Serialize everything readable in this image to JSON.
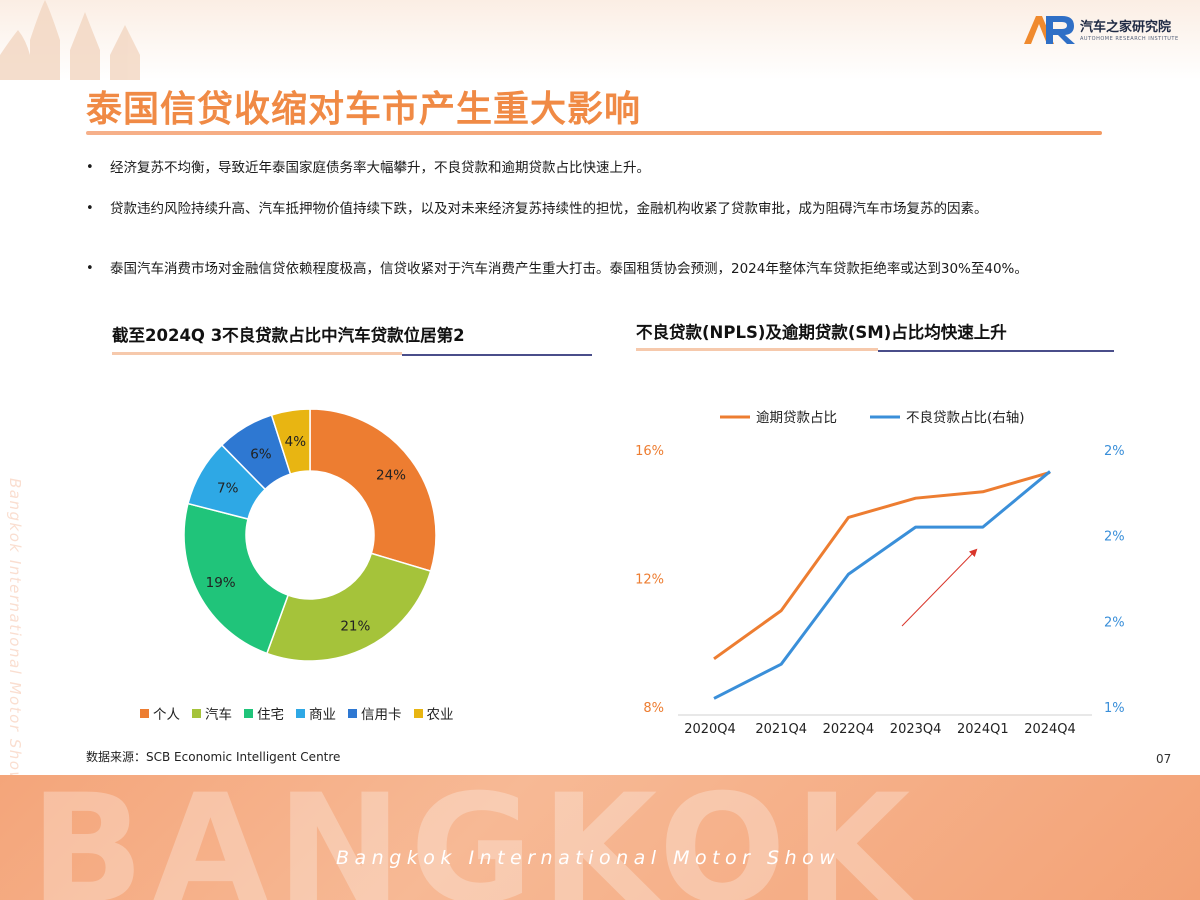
{
  "header": {
    "logo_name": "汽车之家研究院",
    "logo_sub": "AUTOHOME RESEARCH INSTITUTE",
    "logo_mark": "AR"
  },
  "title": "泰国信贷收缩对车市产生重大影响",
  "bullets": [
    {
      "dot": "•",
      "text": "经济复苏不均衡，导致近年泰国家庭债务率大幅攀升，不良贷款和逾期贷款占比快速上升。"
    },
    {
      "dot": "•",
      "text": "贷款违约风险持续升高、汽车抵押物价值持续下跌，以及对未来经济复苏持续性的担忧，金融机构收紧了贷款审批，成为阻碍汽车市场复苏的因素。"
    },
    {
      "dot": "•",
      "text": "泰国汽车消费市场对金融信贷依赖程度极高，信贷收紧对于汽车消费产生重大打击。泰国租赁协会预测，2024年整体汽车贷款拒绝率或达到30%至40%。"
    }
  ],
  "left_section_title": "截至2024Q 3不良贷款占比中汽车贷款位居第2",
  "right_section_title": "不良贷款(NPLS)及逾期贷款(SM)占比均快速上升",
  "data_source": "数据来源：SCB Economic Intelligent Centre",
  "page_number": "07",
  "footer": {
    "big_text": "BANGKOK",
    "sub_text": "Bangkok International Motor Show"
  },
  "side_watermark": "Bangkok International Motor Show",
  "chart_data": [
    {
      "type": "pie",
      "title": "截至2024Q 3不良贷款占比中汽车贷款位居第2",
      "donut": true,
      "categories": [
        "个人",
        "汽车",
        "住宅",
        "商业",
        "信用卡",
        "农业"
      ],
      "values": [
        24,
        21,
        19,
        7,
        6,
        4
      ],
      "labels": [
        "24%",
        "21%",
        "19%",
        "7%",
        "6%",
        "4%"
      ],
      "colors": [
        "#ed7d31",
        "#a5c33a",
        "#20c47a",
        "#2ea8e5",
        "#2e78d2",
        "#e8b512"
      ],
      "legend_position": "bottom"
    },
    {
      "type": "line",
      "title": "不良贷款(NPLS)及逾期贷款(SM)占比均快速上升",
      "x": [
        "2020Q4",
        "2021Q4",
        "2022Q4",
        "2023Q4",
        "2024Q1",
        "2024Q4"
      ],
      "y_left_ticks": [
        "16%",
        "12%",
        "8%"
      ],
      "y_right_ticks": [
        "2%",
        "2%",
        "2%",
        "1%"
      ],
      "ylim_left": [
        8,
        16
      ],
      "ylim_right": [
        0,
        3
      ],
      "series": [
        {
          "name": "逾期贷款占比",
          "axis": "left",
          "color": "#ed7d31",
          "values": [
            9.5,
            11,
            13.9,
            14.5,
            14.7,
            15.3
          ]
        },
        {
          "name": "不良贷款占比(右轴)",
          "axis": "right",
          "color": "#3a8fd9",
          "values": [
            0.1,
            0.5,
            1.55,
            2.1,
            2.1,
            2.75
          ]
        }
      ],
      "legend_position": "top",
      "grid": false
    }
  ]
}
